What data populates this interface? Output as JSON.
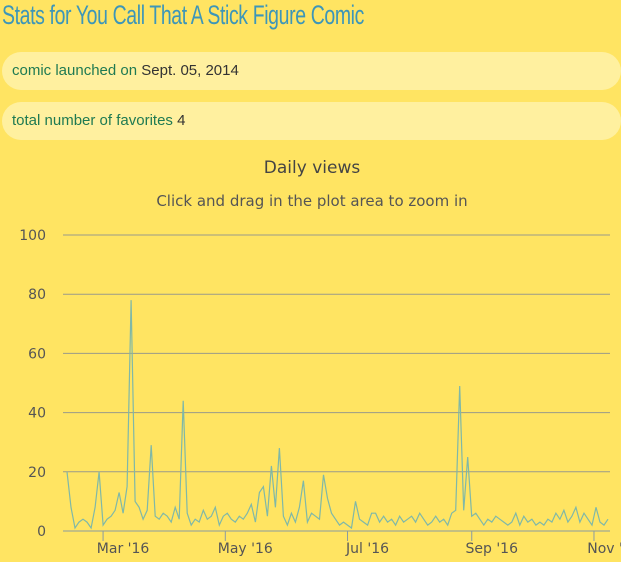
{
  "page": {
    "title": "Stats for You Call That A Stick Figure Comic"
  },
  "info": {
    "launched_label": "comic launched on",
    "launched_value": "Sept. 05, 2014",
    "favorites_label": "total number of favorites",
    "favorites_value": "4"
  },
  "chart_data": {
    "type": "line",
    "title": "Daily views",
    "subtitle": "Click and drag in the plot area to zoom in",
    "xlabel": "",
    "ylabel": "",
    "ylim": [
      0,
      100
    ],
    "yticks": [
      "0",
      "20",
      "40",
      "60",
      "80",
      "100"
    ],
    "xlim": [
      "2016-02-10",
      "2016-11-09"
    ],
    "xticks": [
      {
        "date": "2016-03-01",
        "label": "Mar '16"
      },
      {
        "date": "2016-05-01",
        "label": "May '16"
      },
      {
        "date": "2016-07-01",
        "label": "Jul '16"
      },
      {
        "date": "2016-09-01",
        "label": "Sep '16"
      },
      {
        "date": "2016-11-01",
        "label": "Nov '16"
      }
    ],
    "grid": true,
    "series": [
      {
        "name": "Daily views",
        "color": "#7fb8a8",
        "start_date": "2016-02-12",
        "interval_days": 2,
        "values": [
          20,
          8,
          1,
          3,
          4,
          3,
          1,
          8,
          20,
          2,
          4,
          5,
          7,
          13,
          6,
          15,
          78,
          10,
          8,
          4,
          7,
          29,
          5,
          4,
          6,
          5,
          3,
          8,
          4,
          44,
          6,
          2,
          4,
          3,
          7,
          4,
          5,
          8,
          2,
          5,
          6,
          4,
          3,
          5,
          4,
          6,
          9,
          3,
          13,
          15,
          5,
          22,
          8,
          28,
          5,
          2,
          6,
          3,
          8,
          17,
          3,
          6,
          5,
          4,
          19,
          11,
          6,
          4,
          2,
          3,
          2,
          1,
          10,
          4,
          3,
          2,
          6,
          6,
          3,
          5,
          3,
          4,
          2,
          5,
          3,
          4,
          5,
          3,
          6,
          4,
          2,
          3,
          5,
          3,
          4,
          2,
          6,
          7,
          49,
          7,
          25,
          5,
          6,
          4,
          2,
          4,
          3,
          5,
          4,
          3,
          2,
          3,
          6,
          2,
          5,
          3,
          4,
          2,
          3,
          2,
          4,
          3,
          6,
          4,
          7,
          3,
          5,
          8,
          3,
          6,
          4,
          2,
          8,
          3,
          2,
          4
        ]
      }
    ]
  }
}
